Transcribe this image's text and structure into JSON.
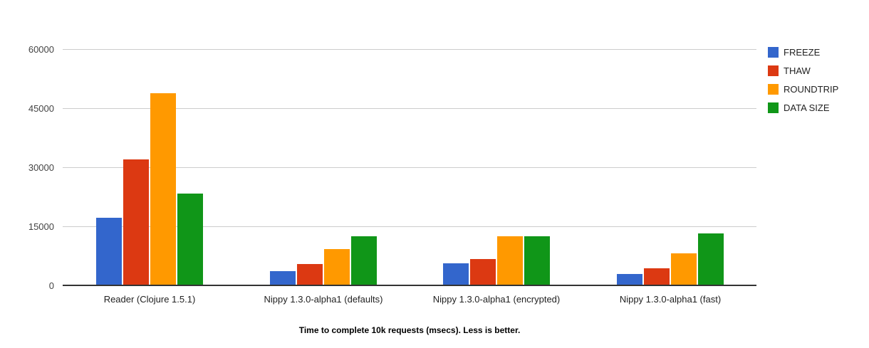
{
  "chart": {
    "caption": "Time to complete 10k requests (msecs). Less is better."
  },
  "chart_data": {
    "type": "bar",
    "title": "Time to complete 10k requests (msecs). Less is better.",
    "xlabel": "",
    "ylabel": "",
    "categories": [
      "Reader (Clojure 1.5.1)",
      "Nippy 1.3.0-alpha1 (defaults)",
      "Nippy 1.3.0-alpha1 (encrypted)",
      "Nippy 1.3.0-alpha1 (fast)"
    ],
    "series": [
      {
        "name": "FREEZE",
        "color": "#3366CC",
        "values": [
          16900,
          3400,
          5500,
          2800
        ]
      },
      {
        "name": "THAW",
        "color": "#DC3912",
        "values": [
          31800,
          5200,
          6500,
          4200
        ]
      },
      {
        "name": "ROUNDTRIP",
        "color": "#FF9900",
        "values": [
          48600,
          9000,
          12200,
          8000
        ]
      },
      {
        "name": "DATA SIZE",
        "color": "#109618",
        "values": [
          23100,
          12200,
          12300,
          13000
        ]
      }
    ],
    "ylim": [
      0,
      60000
    ],
    "yticks": [
      0,
      15000,
      30000,
      45000,
      60000
    ],
    "grid": true,
    "legend_position": "right",
    "colors": {
      "gridline": "#cccccc",
      "baseline": "#333333",
      "tick_text": "#444444",
      "category_text": "#222222",
      "legend_text": "#222222",
      "background": "#ffffff"
    }
  }
}
